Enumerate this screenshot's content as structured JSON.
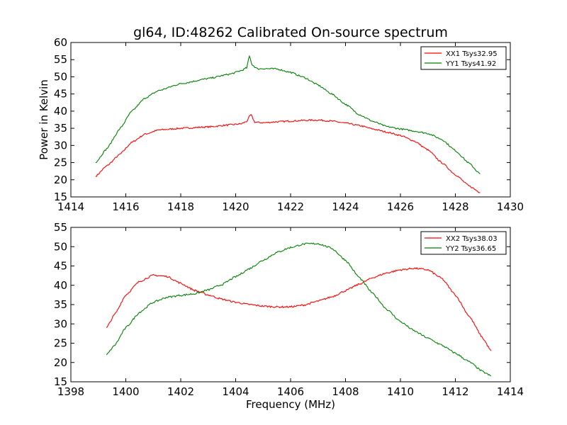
{
  "page": {
    "title": "gl64, ID:48262 Calibrated On-source spectrum",
    "xlabel": "Frequency (MHz)"
  },
  "colors": {
    "red": "#ff0000",
    "green": "#008000"
  },
  "chart_data": [
    {
      "type": "line",
      "title": "gl64, ID:48262 Calibrated On-source spectrum",
      "xlabel": "",
      "ylabel": "Power in Kelvin",
      "xlim": [
        1414,
        1430
      ],
      "ylim": [
        15,
        60
      ],
      "xticks": [
        1414,
        1416,
        1418,
        1420,
        1422,
        1424,
        1426,
        1428,
        1430
      ],
      "yticks": [
        15,
        20,
        25,
        30,
        35,
        40,
        45,
        50,
        55,
        60
      ],
      "grid": false,
      "legend": "top-right",
      "series": [
        {
          "name": "XX1 Tsys32.95",
          "color": "#ff0000",
          "x": [
            1414.9,
            1415.3,
            1415.8,
            1416.2,
            1416.7,
            1417.2,
            1418.0,
            1419.0,
            1419.8,
            1420.2,
            1420.4,
            1420.55,
            1420.7,
            1421.0,
            1421.5,
            1422.0,
            1422.5,
            1423.0,
            1423.5,
            1424.0,
            1424.5,
            1425.0,
            1425.5,
            1426.0,
            1426.5,
            1427.0,
            1427.5,
            1428.0,
            1428.5,
            1428.9
          ],
          "y": [
            21.0,
            24.0,
            27.5,
            30.8,
            33.3,
            34.5,
            35.0,
            35.4,
            36.0,
            36.3,
            37.0,
            39.0,
            36.8,
            36.6,
            36.9,
            37.1,
            37.3,
            37.4,
            37.1,
            36.5,
            35.8,
            34.8,
            33.9,
            32.9,
            31.3,
            28.7,
            25.0,
            21.5,
            18.2,
            16.3
          ]
        },
        {
          "name": "YY1 Tsys41.92",
          "color": "#008000",
          "x": [
            1414.9,
            1415.3,
            1415.8,
            1416.2,
            1416.7,
            1417.2,
            1418.0,
            1419.0,
            1419.8,
            1420.2,
            1420.4,
            1420.5,
            1420.6,
            1420.8,
            1421.0,
            1421.5,
            1422.0,
            1422.5,
            1423.0,
            1423.5,
            1424.0,
            1424.5,
            1425.0,
            1425.5,
            1426.0,
            1426.5,
            1427.0,
            1427.5,
            1428.0,
            1428.5,
            1428.9
          ],
          "y": [
            25.0,
            29.0,
            35.0,
            39.8,
            43.8,
            46.0,
            48.0,
            49.5,
            50.8,
            51.8,
            52.6,
            56.0,
            53.5,
            52.3,
            52.4,
            52.3,
            51.3,
            49.8,
            47.6,
            45.0,
            42.0,
            39.0,
            37.0,
            35.5,
            34.8,
            34.2,
            33.5,
            31.8,
            28.5,
            24.8,
            21.7
          ]
        }
      ]
    },
    {
      "type": "line",
      "title": "",
      "xlabel": "Frequency (MHz)",
      "ylabel": "",
      "xlim": [
        1398,
        1414
      ],
      "ylim": [
        15,
        55
      ],
      "xticks": [
        1398,
        1400,
        1402,
        1404,
        1406,
        1408,
        1410,
        1412,
        1414
      ],
      "yticks": [
        15,
        20,
        25,
        30,
        35,
        40,
        45,
        50,
        55
      ],
      "grid": false,
      "legend": "top-right",
      "series": [
        {
          "name": "XX2 Tsys38.03",
          "color": "#ff0000",
          "x": [
            1399.3,
            1399.6,
            1400.0,
            1400.5,
            1401.0,
            1401.5,
            1402.0,
            1402.5,
            1403.0,
            1403.5,
            1404.0,
            1404.5,
            1405.0,
            1405.5,
            1406.0,
            1406.5,
            1407.0,
            1407.5,
            1408.0,
            1408.5,
            1409.0,
            1409.5,
            1410.0,
            1410.5,
            1411.0,
            1411.5,
            1412.0,
            1412.5,
            1413.0,
            1413.3
          ],
          "y": [
            29.0,
            32.5,
            37.5,
            41.0,
            42.6,
            42.3,
            40.5,
            38.7,
            37.5,
            36.4,
            35.6,
            35.0,
            34.6,
            34.4,
            34.4,
            34.9,
            35.9,
            37.0,
            38.6,
            40.3,
            42.0,
            43.2,
            44.0,
            44.4,
            44.0,
            41.8,
            37.5,
            32.0,
            26.3,
            23.0
          ]
        },
        {
          "name": "YY2 Tsys36.65",
          "color": "#008000",
          "x": [
            1399.3,
            1399.6,
            1400.0,
            1400.5,
            1401.0,
            1401.5,
            1402.0,
            1402.5,
            1403.0,
            1403.5,
            1404.0,
            1404.5,
            1405.0,
            1405.5,
            1406.0,
            1406.5,
            1407.0,
            1407.5,
            1408.0,
            1408.5,
            1409.0,
            1409.5,
            1410.0,
            1410.5,
            1411.0,
            1411.5,
            1412.0,
            1412.5,
            1413.0,
            1413.3
          ],
          "y": [
            22.0,
            24.5,
            29.0,
            33.0,
            35.6,
            36.9,
            37.4,
            37.8,
            38.8,
            40.2,
            42.2,
            44.3,
            46.5,
            48.5,
            49.8,
            50.7,
            50.8,
            49.6,
            46.5,
            42.0,
            37.8,
            33.8,
            30.6,
            28.2,
            26.3,
            24.5,
            22.4,
            20.2,
            17.6,
            16.5
          ]
        }
      ]
    }
  ]
}
